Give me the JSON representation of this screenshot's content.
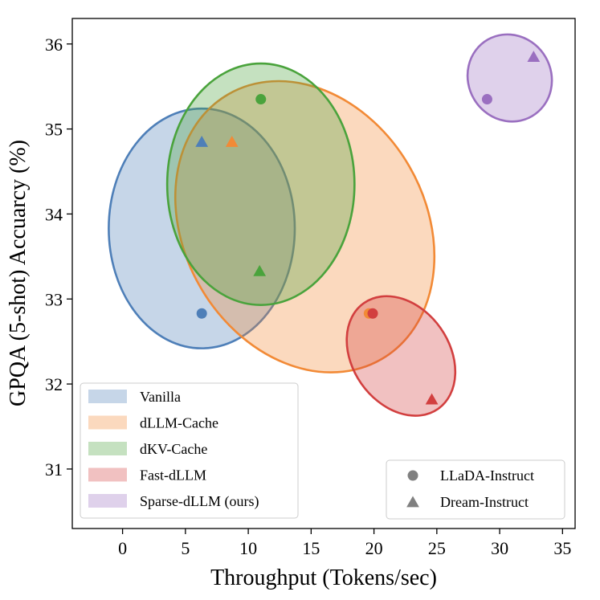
{
  "chart_data": {
    "type": "scatter",
    "title": "",
    "xlabel": "Throughput (Tokens/sec)",
    "ylabel": "GPQA (5-shot) Accuarcy (%)",
    "xlim": [
      -4,
      36
    ],
    "ylim": [
      30.3,
      36.3
    ],
    "xticks": [
      0,
      5,
      10,
      15,
      20,
      25,
      30,
      35
    ],
    "yticks": [
      31,
      32,
      33,
      34,
      35,
      36
    ],
    "grid": false,
    "series": [
      {
        "name": "Vanilla",
        "color": "#4e7fb8",
        "ellipse": {
          "cx": 6.3,
          "cy": 33.83,
          "rx": 7.4,
          "ry": 1.41,
          "angle": 0
        },
        "points": [
          {
            "model": "LLaDA-Instruct",
            "x": 6.3,
            "y": 32.83
          },
          {
            "model": "Dream-Instruct",
            "x": 6.3,
            "y": 34.85
          }
        ]
      },
      {
        "name": "dLLM-Cache",
        "color": "#f28a36",
        "ellipse": {
          "cx": 14.5,
          "cy": 33.85,
          "rx": 9.6,
          "ry": 1.8,
          "angle": -30
        },
        "points": [
          {
            "model": "LLaDA-Instruct",
            "x": 19.6,
            "y": 32.83
          },
          {
            "model": "Dream-Instruct",
            "x": 8.7,
            "y": 34.85
          }
        ]
      },
      {
        "name": "dKV-Cache",
        "color": "#4aa33c",
        "ellipse": {
          "cx": 11.0,
          "cy": 34.35,
          "rx": 7.45,
          "ry": 1.42,
          "angle": 0
        },
        "points": [
          {
            "model": "LLaDA-Instruct",
            "x": 11.0,
            "y": 35.35
          },
          {
            "model": "Dream-Instruct",
            "x": 10.9,
            "y": 33.33
          }
        ]
      },
      {
        "name": "Fast-dLLM",
        "color": "#d23f3f",
        "ellipse": {
          "cx": 22.15,
          "cy": 32.33,
          "rx": 3.85,
          "ry": 0.76,
          "angle": -35
        },
        "points": [
          {
            "model": "LLaDA-Instruct",
            "x": 19.9,
            "y": 32.83
          },
          {
            "model": "Dream-Instruct",
            "x": 24.6,
            "y": 31.82
          }
        ]
      },
      {
        "name": "Sparse-dLLM (ours)",
        "color": "#9a6fc0",
        "ellipse": {
          "cx": 30.8,
          "cy": 35.6,
          "rx": 3.3,
          "ry": 0.52,
          "angle": -30
        },
        "points": [
          {
            "model": "LLaDA-Instruct",
            "x": 29.0,
            "y": 35.35
          },
          {
            "model": "Dream-Instruct",
            "x": 32.7,
            "y": 35.85
          }
        ]
      }
    ],
    "legend_methods": {
      "placement": "lower-left",
      "entries": [
        "Vanilla",
        "dLLM-Cache",
        "dKV-Cache",
        "Fast-dLLM",
        "Sparse-dLLM (ours)"
      ]
    },
    "legend_models": {
      "placement": "lower-right",
      "marker_color": "#808080",
      "entries": [
        {
          "label": "LLaDA-Instruct",
          "marker": "circle"
        },
        {
          "label": "Dream-Instruct",
          "marker": "triangle"
        }
      ]
    }
  }
}
